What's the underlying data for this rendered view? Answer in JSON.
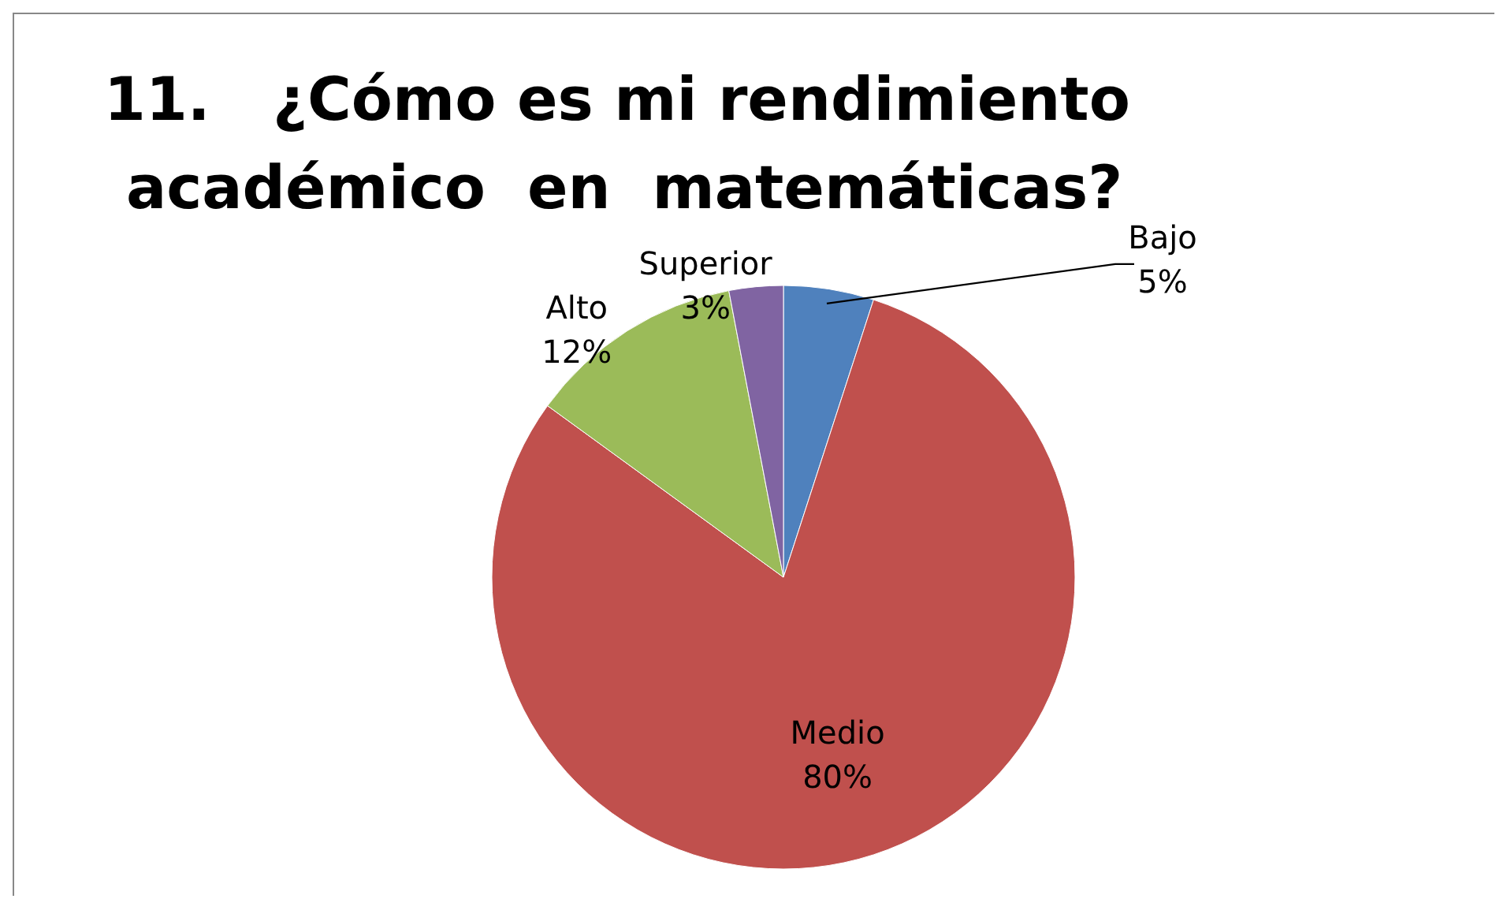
{
  "chart_data": {
    "type": "pie",
    "title": "11.   ¿Cómo es mi rendimiento\nacadémico  en  matemáticas?",
    "categories": [
      "Bajo",
      "Medio",
      "Alto",
      "Superior"
    ],
    "values": [
      5,
      80,
      12,
      3
    ],
    "colors": [
      "#4f81bd",
      "#c0504d",
      "#9bbb59",
      "#8064a2"
    ],
    "value_labels": [
      "5%",
      "80%",
      "12%",
      "3%"
    ],
    "legend": false
  }
}
